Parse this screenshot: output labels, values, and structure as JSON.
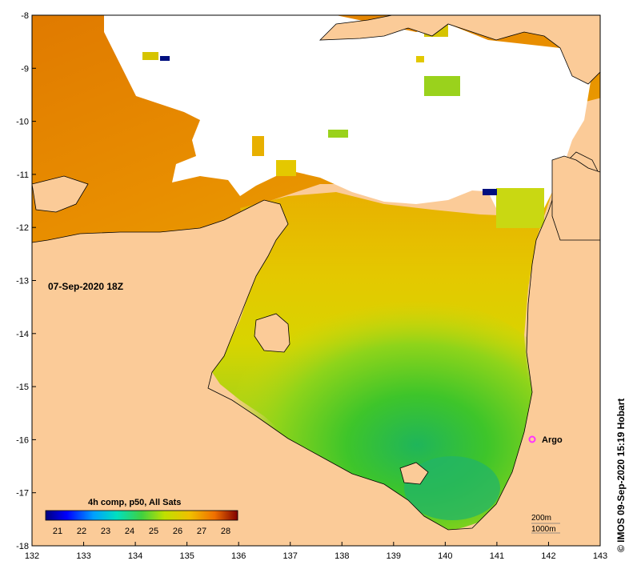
{
  "map": {
    "date_label": "07-Sep-2020 18Z",
    "credit": "© IMOS 09-Sep-2020 15:19 Hobart",
    "lon_ticks": [
      "132",
      "133",
      "134",
      "135",
      "136",
      "137",
      "138",
      "139",
      "140",
      "141",
      "142",
      "143"
    ],
    "lat_ticks": [
      "-8",
      "-9",
      "-10",
      "-11",
      "-12",
      "-13",
      "-14",
      "-15",
      "-16",
      "-17",
      "-18"
    ],
    "argo_label": "Argo",
    "scale_200": "200m",
    "scale_1000": "1000m",
    "colors": {
      "land": "#fbcb98",
      "cloud": "#ffffff",
      "argo": "#ff33ff",
      "sst_warm": "#e98b00",
      "sst_mid": "#e5c400",
      "sst_cool": "#34c22a"
    }
  },
  "colorbar": {
    "title": "4h comp, p50, All Sats",
    "ticks": [
      "21",
      "22",
      "23",
      "24",
      "25",
      "26",
      "27",
      "28"
    ],
    "unit_range": [
      20.5,
      28.5
    ]
  }
}
